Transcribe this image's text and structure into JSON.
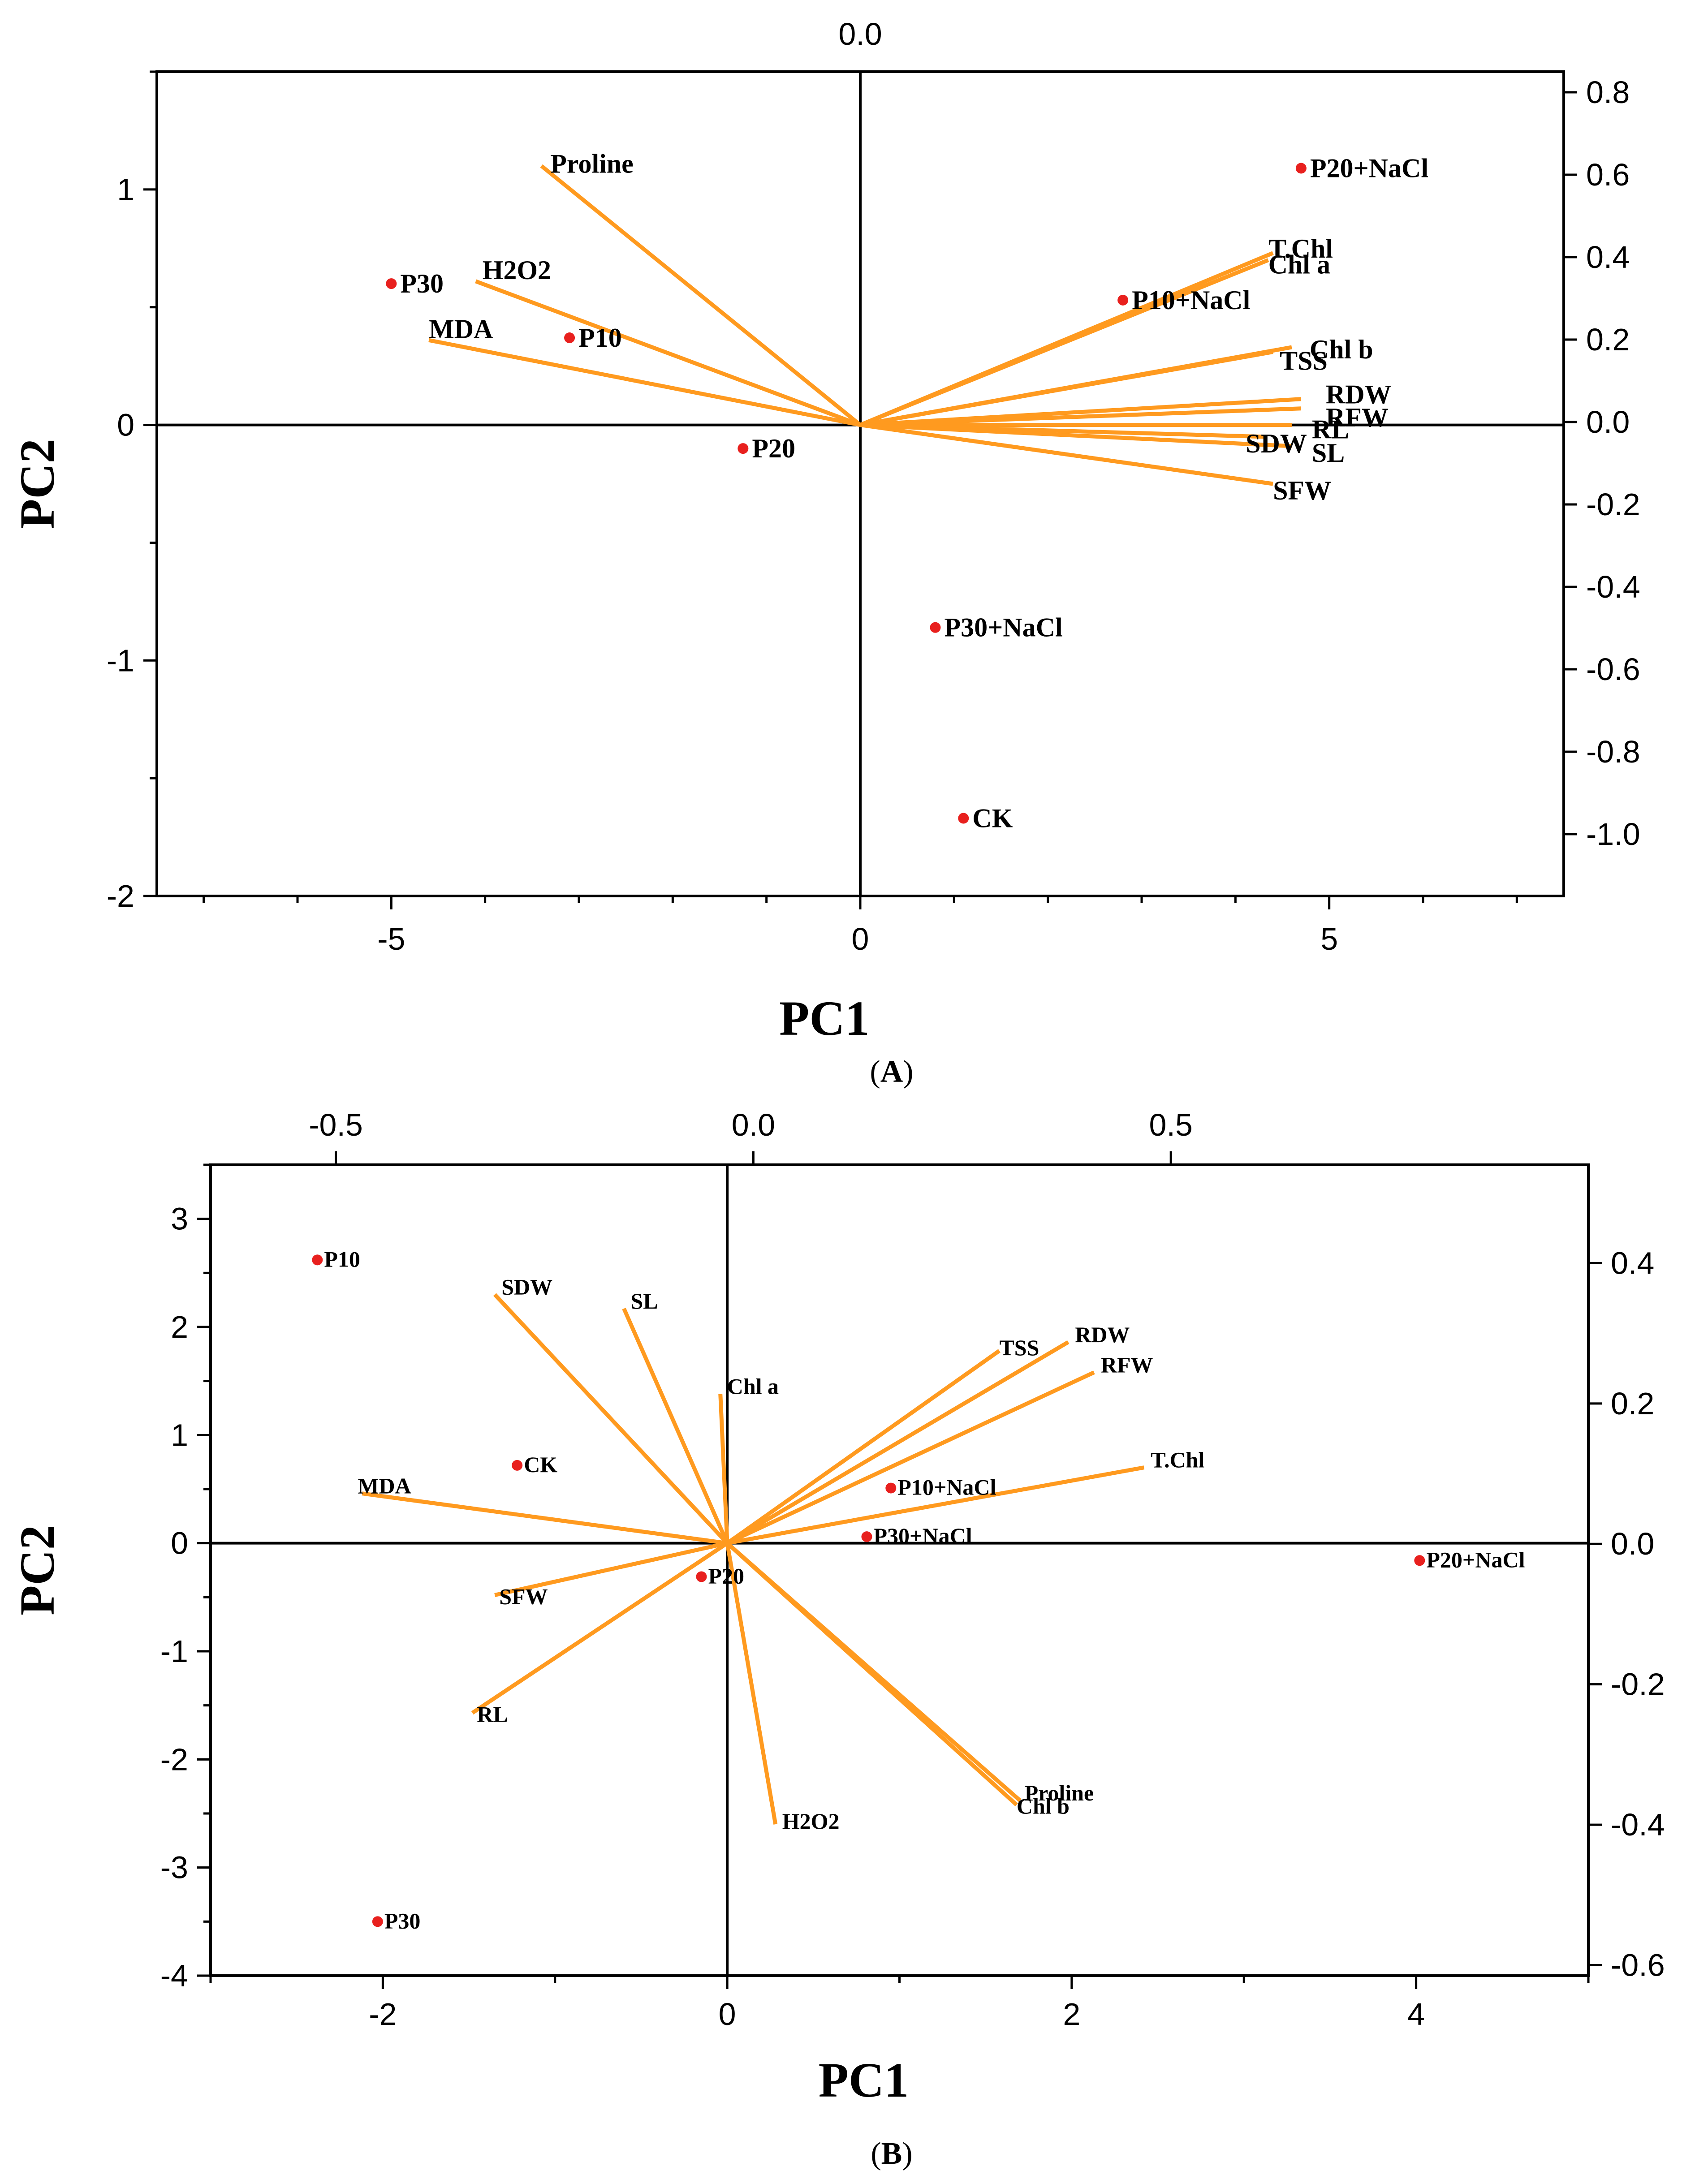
{
  "figure": {
    "colors": {
      "vector": "#ff9a1f",
      "point": "#e8201e",
      "axis": "#000000"
    }
  },
  "chart_data": [
    {
      "type": "scatter",
      "subtype": "pca-biplot",
      "panel_label": "A",
      "xlabel": "PC1",
      "ylabel": "PC2",
      "top_axis_label": "0.0",
      "xlim": [
        -7.5,
        7.5
      ],
      "ylim": [
        -2.0,
        1.5
      ],
      "x_ticks": [
        -5,
        0,
        5
      ],
      "y_ticks": [
        -2,
        -1,
        0,
        1
      ],
      "right_ylim": [
        -1.15,
        0.85
      ],
      "right_ticks": [
        "0.8",
        "0.6",
        "0.4",
        "0.2",
        "0.0",
        "-0.2",
        "-0.4",
        "-0.6",
        "-0.8",
        "-1.0"
      ],
      "scores": [
        {
          "label": "P20+NaCl",
          "x": 4.7,
          "y": 1.09
        },
        {
          "label": "P30",
          "x": -5.0,
          "y": 0.6
        },
        {
          "label": "P10",
          "x": -3.1,
          "y": 0.37
        },
        {
          "label": "P10+NaCl",
          "x": 2.8,
          "y": 0.53
        },
        {
          "label": "P20",
          "x": -1.25,
          "y": -0.1
        },
        {
          "label": "P30+NaCl",
          "x": 0.8,
          "y": -0.86
        },
        {
          "label": "CK",
          "x": 1.1,
          "y": -1.67
        }
      ],
      "loadings": [
        {
          "label": "Proline",
          "x": -3.4,
          "y": 1.1
        },
        {
          "label": "H2O2",
          "x": -4.1,
          "y": 0.61
        },
        {
          "label": "MDA",
          "x": -4.6,
          "y": 0.36
        },
        {
          "label": "T.Chl",
          "x": 4.4,
          "y": 0.73
        },
        {
          "label": "Chl a",
          "x": 4.35,
          "y": 0.7
        },
        {
          "label": "Chl b",
          "x": 4.6,
          "y": 0.33
        },
        {
          "label": "TSS",
          "x": 4.4,
          "y": 0.31
        },
        {
          "label": "RDW",
          "x": 4.7,
          "y": 0.11
        },
        {
          "label": "RFW",
          "x": 4.7,
          "y": 0.07
        },
        {
          "label": "RL",
          "x": 4.6,
          "y": 0.0
        },
        {
          "label": "SDW",
          "x": 4.3,
          "y": -0.05
        },
        {
          "label": "SL",
          "x": 4.6,
          "y": -0.09
        },
        {
          "label": "SFW",
          "x": 4.4,
          "y": -0.25
        }
      ]
    },
    {
      "type": "scatter",
      "subtype": "pca-biplot",
      "panel_label": "B",
      "xlabel": "PC1",
      "ylabel": "PC2",
      "xlim": [
        -3.0,
        5.0
      ],
      "ylim": [
        -4.0,
        3.5
      ],
      "x_ticks": [
        -2,
        0,
        2,
        4
      ],
      "y_ticks": [
        -4,
        -3,
        -2,
        -1,
        0,
        1,
        2,
        3
      ],
      "top_xlim": [
        -0.65,
        1.0
      ],
      "top_ticks": [
        "-0.5",
        "0.0",
        "0.5"
      ],
      "right_ylim": [
        -0.615,
        0.54
      ],
      "right_ticks": [
        "0.4",
        "0.2",
        "0.0",
        "-0.2",
        "-0.4",
        "-0.6"
      ],
      "scores": [
        {
          "label": "P10",
          "x": -2.38,
          "y": 2.62
        },
        {
          "label": "CK",
          "x": -1.22,
          "y": 0.72
        },
        {
          "label": "P10+NaCl",
          "x": 0.95,
          "y": 0.51
        },
        {
          "label": "P30+NaCl",
          "x": 0.81,
          "y": 0.06
        },
        {
          "label": "P20",
          "x": -0.15,
          "y": -0.31
        },
        {
          "label": "P20+NaCl",
          "x": 4.02,
          "y": -0.16
        },
        {
          "label": "P30",
          "x": -2.03,
          "y": -3.5
        }
      ],
      "loadings": [
        {
          "label": "SDW",
          "x": -1.35,
          "y": 2.3
        },
        {
          "label": "SL",
          "x": -0.6,
          "y": 2.17
        },
        {
          "label": "Chl a",
          "x": -0.04,
          "y": 1.38
        },
        {
          "label": "TSS",
          "x": 1.58,
          "y": 1.78
        },
        {
          "label": "RDW",
          "x": 1.98,
          "y": 1.86
        },
        {
          "label": "RFW",
          "x": 2.13,
          "y": 1.58
        },
        {
          "label": "T.Chl",
          "x": 2.42,
          "y": 0.7
        },
        {
          "label": "MDA",
          "x": -2.12,
          "y": 0.46
        },
        {
          "label": "SFW",
          "x": -1.35,
          "y": -0.48
        },
        {
          "label": "RL",
          "x": -1.48,
          "y": -1.57
        },
        {
          "label": "H2O2",
          "x": 0.28,
          "y": -2.6
        },
        {
          "label": "Proline",
          "x": 1.7,
          "y": -2.38
        },
        {
          "label": "Chl b",
          "x": 1.68,
          "y": -2.42
        }
      ]
    }
  ]
}
